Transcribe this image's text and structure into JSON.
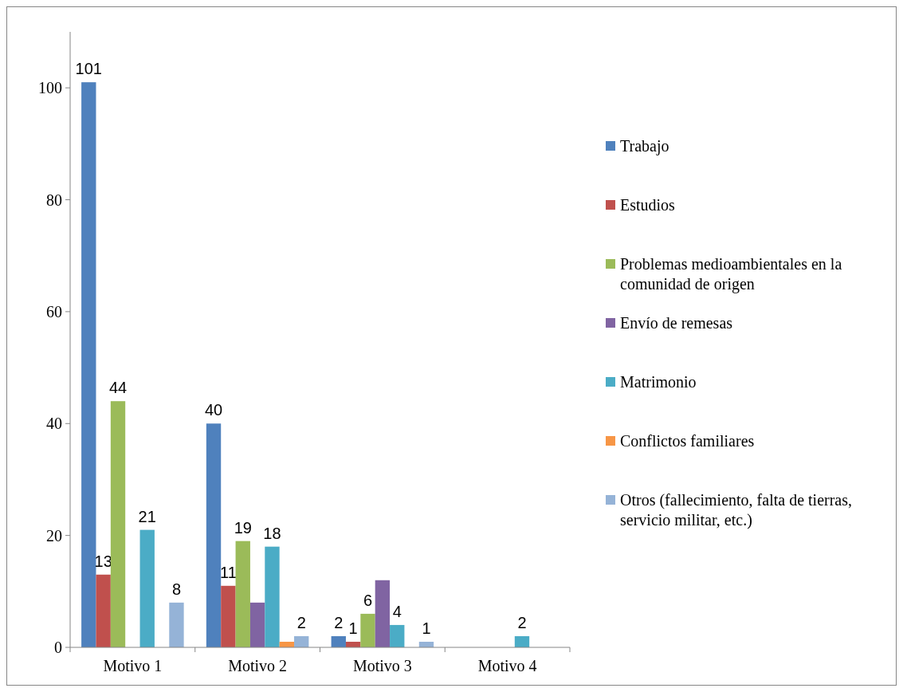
{
  "chart_data": {
    "type": "bar",
    "categories": [
      "Motivo 1",
      "Motivo 2",
      "Motivo 3",
      "Motivo 4"
    ],
    "ylim": [
      0,
      110
    ],
    "yticks": [
      0,
      20,
      40,
      60,
      80,
      100
    ],
    "grid": false,
    "legend": "right",
    "series": [
      {
        "name": "Trabajo",
        "color": "#4f81bd",
        "values": [
          101,
          40,
          2,
          null
        ],
        "value_labels": [
          "101",
          "40",
          "2",
          null
        ]
      },
      {
        "name": "Estudios",
        "color": "#c0504d",
        "values": [
          13,
          11,
          1,
          null
        ],
        "value_labels": [
          "13",
          "11",
          "1",
          null
        ]
      },
      {
        "name": "Problemas medioambientales en la comunidad de origen",
        "color": "#9bbb59",
        "values": [
          44,
          19,
          6,
          null
        ],
        "value_labels": [
          "44",
          "19",
          "6",
          null
        ]
      },
      {
        "name": "Envío de remesas",
        "color": "#8064a2",
        "values": [
          null,
          8,
          12,
          null
        ],
        "value_labels": [
          null,
          null,
          null,
          null
        ]
      },
      {
        "name": "Matrimonio",
        "color": "#4bacc6",
        "values": [
          21,
          18,
          4,
          2
        ],
        "value_labels": [
          "21",
          "18",
          "4",
          "2"
        ]
      },
      {
        "name": "Conflictos familiares",
        "color": "#f79646",
        "values": [
          null,
          1,
          null,
          null
        ],
        "value_labels": [
          null,
          null,
          null,
          null
        ]
      },
      {
        "name": "Otros (fallecimiento, falta de tierras, servicio militar, etc.)",
        "color": "#95b3d7",
        "values": [
          8,
          2,
          1,
          null
        ],
        "value_labels": [
          "8",
          "2",
          "1",
          null
        ]
      }
    ]
  }
}
